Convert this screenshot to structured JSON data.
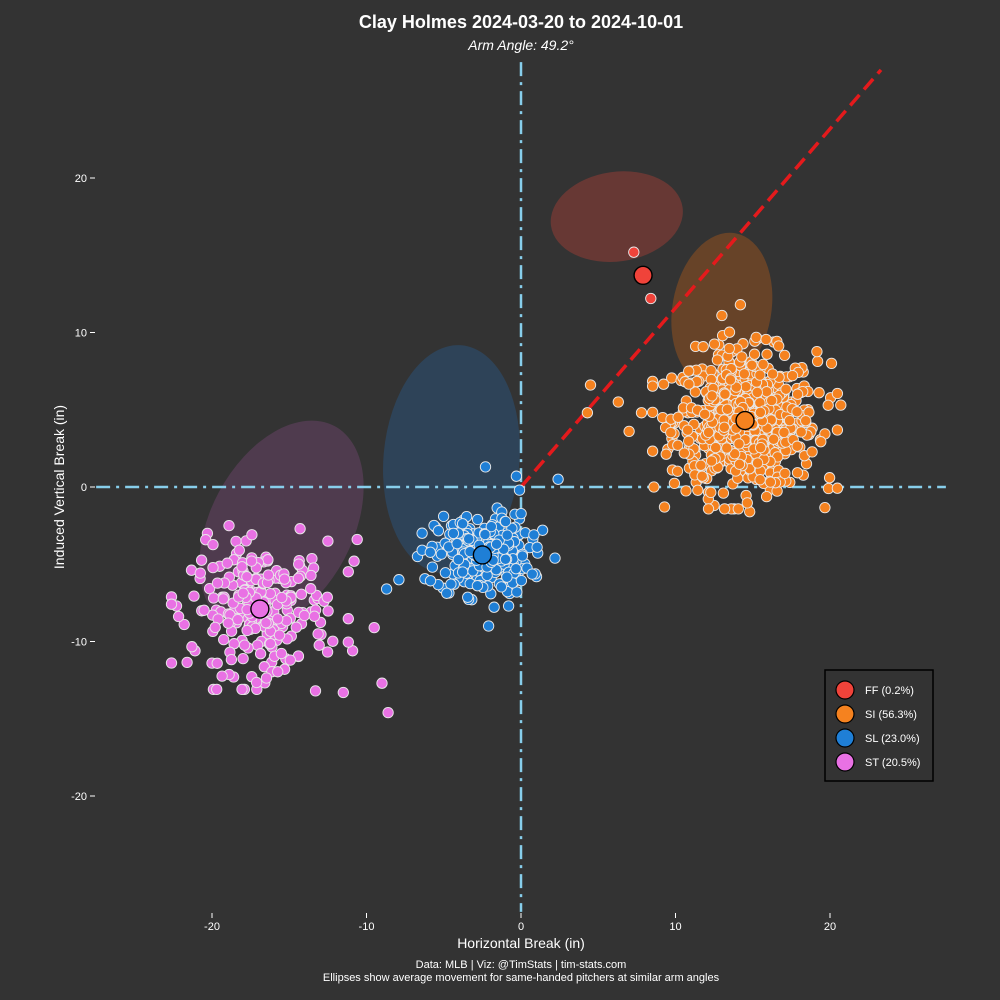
{
  "chart_data": {
    "type": "scatter",
    "title": "Clay Holmes 2024-03-20 to 2024-10-01",
    "subtitle": "Arm Angle: 49.2°",
    "xlabel": "Horizontal Break (in)",
    "ylabel": "Induced Vertical Break (in)",
    "xlim": [
      -28,
      28
    ],
    "ylim": [
      -28,
      28
    ],
    "x_ticks": [
      -20,
      -10,
      0,
      10,
      20
    ],
    "y_ticks": [
      -20,
      -10,
      0,
      10,
      20
    ],
    "x_tick_labels": [
      "-20",
      "-10",
      "0",
      "10",
      "20"
    ],
    "y_tick_labels": [
      "-20",
      "-10",
      "0",
      "10",
      "20"
    ],
    "grid": false,
    "legend_position": "bottom-right",
    "caption_line1": "Data: MLB | Viz: @TimStats | tim-stats.com",
    "caption_line2": "Ellipses show average movement for same-handed pitchers at similar arm angles",
    "arm_angle_line": {
      "from": [
        0,
        0
      ],
      "to": [
        23.3,
        27
      ],
      "color": "#e41a1c"
    },
    "reference_line_color": "#87ceeb",
    "series": [
      {
        "name": "FF (0.2%)",
        "color": "#f0433a",
        "mean": [
          7.9,
          13.7
        ],
        "spread": [
          0.6,
          1.4
        ],
        "count": 3,
        "points": [
          [
            7.3,
            15.2
          ],
          [
            8.4,
            12.2
          ],
          [
            7.9,
            13.7
          ]
        ],
        "ellipse": {
          "center": [
            6.2,
            17.5
          ],
          "radius": [
            4.3,
            2.9
          ],
          "rotation_deg": -8,
          "color": "#7a3b35"
        }
      },
      {
        "name": "SI (56.3%)",
        "color": "#f5821f",
        "mean": [
          14.5,
          4.3
        ],
        "spread": [
          2.3,
          2.2
        ],
        "count": 700,
        "points": [
          [
            4.3,
            4.8
          ],
          [
            4.5,
            6.6
          ],
          [
            6.3,
            5.5
          ],
          [
            7.0,
            3.6
          ],
          [
            7.8,
            4.8
          ],
          [
            8.6,
            0.0
          ],
          [
            9.8,
            1.1
          ],
          [
            10.8,
            4.8
          ],
          [
            12.5,
            -1.2
          ],
          [
            13.0,
            11.1
          ],
          [
            14.2,
            11.8
          ],
          [
            14.8,
            -1.6
          ],
          [
            15.3,
            9.6
          ],
          [
            17.4,
            0.3
          ],
          [
            19.9,
            -0.1
          ],
          [
            20.7,
            5.3
          ],
          [
            20.1,
            8.0
          ],
          [
            11.3,
            9.1
          ],
          [
            12.8,
            9.2
          ]
        ],
        "ellipse": {
          "center": [
            13.0,
            11.5
          ],
          "radius": [
            3.2,
            5.0
          ],
          "rotation_deg": 10,
          "color": "#7a4a25"
        }
      },
      {
        "name": "SL (23.0%)",
        "color": "#1f7fd6",
        "mean": [
          -2.5,
          -4.4
        ],
        "spread": [
          1.5,
          1.3
        ],
        "count": 285,
        "points": [
          [
            -2.3,
            1.3
          ],
          [
            -0.3,
            0.7
          ],
          [
            -0.1,
            -0.2
          ],
          [
            2.4,
            0.5
          ],
          [
            2.2,
            -4.6
          ],
          [
            -6.7,
            -4.5
          ],
          [
            -8.7,
            -6.6
          ],
          [
            -7.9,
            -6.0
          ],
          [
            -2.1,
            -9.0
          ],
          [
            -0.8,
            -7.7
          ],
          [
            1.0,
            -5.8
          ],
          [
            1.4,
            -2.8
          ]
        ],
        "ellipse": {
          "center": [
            -4.5,
            1.8
          ],
          "radius": [
            4.4,
            7.4
          ],
          "rotation_deg": 5,
          "color": "#2d4a66"
        }
      },
      {
        "name": "ST (20.5%)",
        "color": "#e971e4",
        "mean": [
          -16.9,
          -7.9
        ],
        "spread": [
          2.2,
          2.0
        ],
        "count": 255,
        "points": [
          [
            -20.3,
            -3.0
          ],
          [
            -18.9,
            -2.5
          ],
          [
            -14.3,
            -2.7
          ],
          [
            -12.5,
            -3.5
          ],
          [
            -10.6,
            -3.4
          ],
          [
            -10.8,
            -4.8
          ],
          [
            -22.3,
            -7.7
          ],
          [
            -21.1,
            -10.6
          ],
          [
            -18.6,
            -12.3
          ],
          [
            -17.1,
            -13.1
          ],
          [
            -15.3,
            -11.8
          ],
          [
            -13.3,
            -13.2
          ],
          [
            -11.5,
            -13.3
          ],
          [
            -9.5,
            -9.1
          ],
          [
            -9.0,
            -12.7
          ],
          [
            -8.6,
            -14.6
          ],
          [
            -10.9,
            -10.6
          ],
          [
            -20.0,
            -11.4
          ]
        ],
        "ellipse": {
          "center": [
            -15.5,
            -2.5
          ],
          "radius": [
            4.6,
            7.3
          ],
          "rotation_deg": 28,
          "color": "#5a3f58"
        }
      }
    ]
  }
}
